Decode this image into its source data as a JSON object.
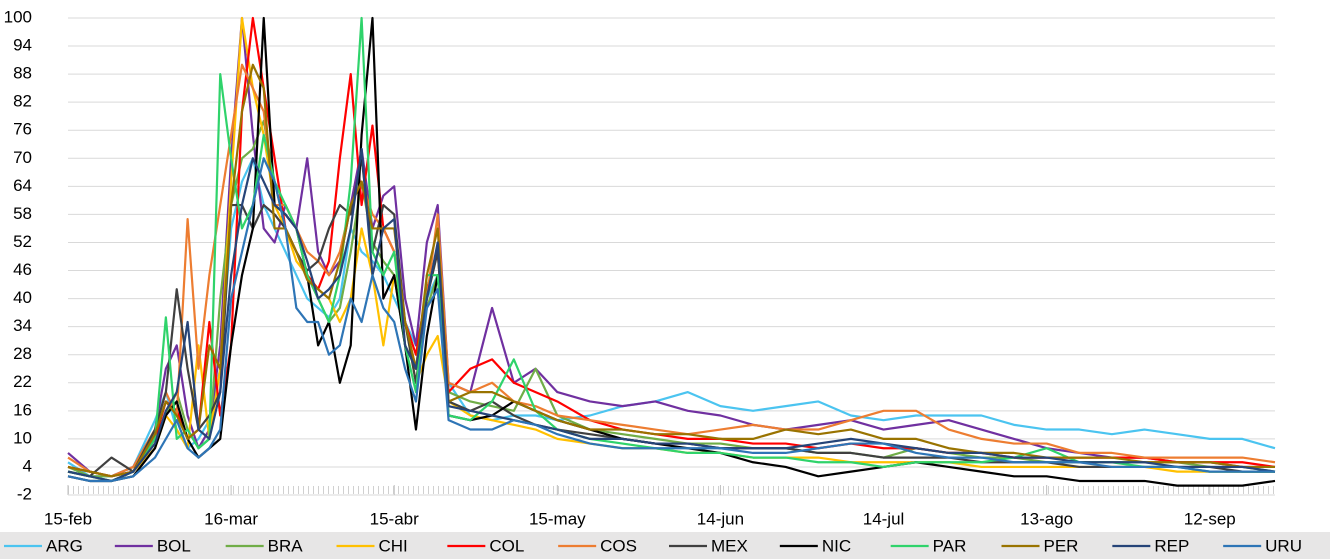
{
  "chart_data": {
    "type": "line",
    "x": [
      0,
      4,
      8,
      12,
      16,
      18,
      20,
      22,
      24,
      26,
      28,
      30,
      32,
      34,
      36,
      38,
      40,
      42,
      44,
      46,
      48,
      50,
      52,
      54,
      56,
      58,
      60,
      62,
      64,
      66,
      68,
      70,
      74,
      78,
      82,
      86,
      90,
      96,
      102,
      108,
      114,
      120,
      126,
      132,
      138,
      144,
      150,
      156,
      162,
      168,
      174,
      180,
      186,
      192,
      198,
      204,
      210,
      216,
      222
    ],
    "xlim": [
      0,
      222
    ],
    "xticks": [
      {
        "value": 0,
        "label": "15-feb"
      },
      {
        "value": 30,
        "label": "16-mar"
      },
      {
        "value": 60,
        "label": "15-abr"
      },
      {
        "value": 90,
        "label": "15-may"
      },
      {
        "value": 120,
        "label": "14-jun"
      },
      {
        "value": 150,
        "label": "14-jul"
      },
      {
        "value": 180,
        "label": "13-ago"
      },
      {
        "value": 210,
        "label": "12-sep"
      }
    ],
    "ylim": [
      -2,
      100
    ],
    "yticks": [
      -2,
      4,
      10,
      16,
      22,
      28,
      34,
      40,
      46,
      52,
      58,
      64,
      70,
      76,
      82,
      88,
      94,
      100
    ],
    "grid": true,
    "legend": "bottom",
    "series": [
      {
        "name": "ARG",
        "color": "#4bc4f0",
        "values": [
          5,
          2,
          2,
          4,
          14,
          20,
          12,
          8,
          10,
          14,
          25,
          55,
          65,
          70,
          60,
          55,
          50,
          45,
          40,
          38,
          36,
          40,
          55,
          50,
          48,
          45,
          40,
          35,
          30,
          40,
          45,
          22,
          15,
          14,
          15,
          15,
          14,
          15,
          17,
          18,
          20,
          17,
          16,
          17,
          18,
          15,
          14,
          15,
          15,
          15,
          13,
          12,
          12,
          11,
          12,
          11,
          10,
          10,
          8
        ]
      },
      {
        "name": "BOL",
        "color": "#7030a0",
        "values": [
          7,
          3,
          2,
          4,
          12,
          25,
          30,
          15,
          8,
          12,
          30,
          70,
          100,
          75,
          55,
          52,
          60,
          55,
          70,
          50,
          45,
          48,
          60,
          72,
          55,
          62,
          64,
          40,
          30,
          52,
          60,
          22,
          20,
          38,
          22,
          25,
          20,
          18,
          17,
          18,
          16,
          15,
          13,
          12,
          13,
          14,
          12,
          13,
          14,
          12,
          10,
          8,
          7,
          6,
          6,
          5,
          5,
          4,
          4
        ]
      },
      {
        "name": "BRA",
        "color": "#70ad47",
        "values": [
          4,
          2,
          2,
          3,
          10,
          15,
          20,
          12,
          8,
          10,
          40,
          60,
          70,
          72,
          78,
          65,
          55,
          50,
          45,
          40,
          35,
          38,
          50,
          65,
          52,
          48,
          45,
          30,
          25,
          38,
          45,
          20,
          18,
          17,
          16,
          25,
          15,
          12,
          11,
          10,
          9,
          9,
          8,
          8,
          7,
          7,
          6,
          8,
          7,
          6,
          6,
          5,
          5,
          5,
          5,
          5,
          4,
          4,
          3
        ]
      },
      {
        "name": "CHI",
        "color": "#ffc000",
        "values": [
          3,
          2,
          1,
          3,
          8,
          15,
          12,
          8,
          30,
          10,
          25,
          65,
          100,
          85,
          75,
          60,
          55,
          48,
          45,
          42,
          40,
          35,
          40,
          55,
          45,
          30,
          45,
          35,
          22,
          28,
          32,
          18,
          15,
          14,
          13,
          12,
          10,
          9,
          8,
          8,
          7,
          7,
          6,
          6,
          6,
          5,
          5,
          5,
          5,
          4,
          4,
          4,
          4,
          4,
          4,
          3,
          3,
          3,
          3
        ]
      },
      {
        "name": "COL",
        "color": "#ff0000",
        "values": [
          4,
          3,
          2,
          3,
          10,
          18,
          16,
          10,
          12,
          35,
          15,
          30,
          80,
          100,
          85,
          70,
          55,
          50,
          45,
          42,
          48,
          70,
          88,
          60,
          77,
          55,
          50,
          35,
          28,
          42,
          50,
          20,
          25,
          27,
          22,
          20,
          18,
          14,
          12,
          11,
          10,
          10,
          9,
          9,
          8,
          9,
          8,
          8,
          7,
          7,
          6,
          6,
          6,
          6,
          6,
          5,
          5,
          5,
          4
        ]
      },
      {
        "name": "COS",
        "color": "#ed7d31",
        "values": [
          6,
          3,
          2,
          4,
          12,
          20,
          15,
          57,
          25,
          45,
          60,
          75,
          90,
          85,
          80,
          60,
          60,
          55,
          50,
          48,
          45,
          50,
          60,
          65,
          58,
          55,
          50,
          35,
          25,
          40,
          58,
          22,
          20,
          22,
          18,
          17,
          15,
          14,
          13,
          12,
          11,
          12,
          13,
          12,
          12,
          14,
          16,
          16,
          12,
          10,
          9,
          9,
          7,
          7,
          6,
          6,
          6,
          6,
          5
        ]
      },
      {
        "name": "MEX",
        "color": "#404040",
        "values": [
          3,
          2,
          6,
          3,
          12,
          20,
          42,
          25,
          12,
          15,
          20,
          60,
          60,
          55,
          60,
          58,
          55,
          50,
          46,
          48,
          55,
          60,
          58,
          70,
          50,
          60,
          58,
          35,
          22,
          40,
          50,
          18,
          16,
          18,
          15,
          13,
          12,
          11,
          10,
          9,
          9,
          8,
          8,
          8,
          7,
          7,
          6,
          6,
          6,
          5,
          5,
          5,
          4,
          4,
          4,
          4,
          4,
          3,
          3
        ]
      },
      {
        "name": "NIC",
        "color": "#000000",
        "values": [
          2,
          1,
          1,
          2,
          8,
          15,
          18,
          10,
          6,
          8,
          10,
          30,
          45,
          55,
          100,
          60,
          58,
          55,
          45,
          30,
          35,
          22,
          30,
          75,
          100,
          40,
          45,
          30,
          12,
          32,
          45,
          15,
          14,
          15,
          18,
          16,
          14,
          12,
          10,
          9,
          8,
          7,
          5,
          4,
          2,
          3,
          4,
          5,
          4,
          3,
          2,
          2,
          1,
          1,
          1,
          0,
          0,
          0,
          1
        ]
      },
      {
        "name": "PAR",
        "color": "#2fd36b",
        "values": [
          3,
          2,
          1,
          3,
          10,
          36,
          10,
          12,
          8,
          10,
          88,
          70,
          55,
          60,
          75,
          65,
          60,
          55,
          45,
          40,
          35,
          45,
          65,
          100,
          50,
          45,
          50,
          30,
          20,
          45,
          45,
          15,
          14,
          18,
          27,
          16,
          12,
          10,
          9,
          8,
          7,
          7,
          6,
          6,
          5,
          5,
          4,
          5,
          5,
          5,
          6,
          8,
          5,
          5,
          4,
          4,
          3,
          3,
          3
        ]
      },
      {
        "name": "PER",
        "color": "#997300",
        "values": [
          4,
          3,
          2,
          3,
          11,
          18,
          15,
          10,
          12,
          30,
          25,
          60,
          80,
          90,
          85,
          55,
          55,
          50,
          44,
          42,
          40,
          48,
          60,
          65,
          55,
          55,
          55,
          35,
          25,
          45,
          55,
          18,
          20,
          20,
          18,
          16,
          14,
          12,
          12,
          11,
          11,
          10,
          10,
          12,
          11,
          12,
          10,
          10,
          8,
          7,
          7,
          6,
          6,
          6,
          5,
          5,
          5,
          4,
          4
        ]
      },
      {
        "name": "REP",
        "color": "#264478",
        "values": [
          3,
          2,
          1,
          3,
          9,
          16,
          20,
          35,
          12,
          10,
          20,
          45,
          60,
          70,
          65,
          60,
          58,
          55,
          48,
          40,
          42,
          45,
          55,
          72,
          45,
          55,
          57,
          30,
          25,
          40,
          52,
          17,
          16,
          15,
          14,
          13,
          12,
          10,
          10,
          9,
          9,
          8,
          8,
          8,
          9,
          10,
          9,
          8,
          7,
          7,
          6,
          6,
          5,
          5,
          5,
          4,
          4,
          4,
          3
        ]
      },
      {
        "name": "URU",
        "color": "#2e75b6",
        "values": [
          2,
          1,
          1,
          2,
          6,
          10,
          14,
          8,
          6,
          8,
          12,
          40,
          50,
          60,
          70,
          65,
          55,
          38,
          35,
          35,
          28,
          30,
          40,
          35,
          45,
          38,
          35,
          25,
          18,
          38,
          42,
          14,
          12,
          12,
          14,
          13,
          11,
          9,
          8,
          8,
          8,
          8,
          7,
          7,
          8,
          9,
          9,
          7,
          6,
          6,
          5,
          5,
          5,
          4,
          4,
          4,
          3,
          3,
          3
        ]
      }
    ]
  }
}
